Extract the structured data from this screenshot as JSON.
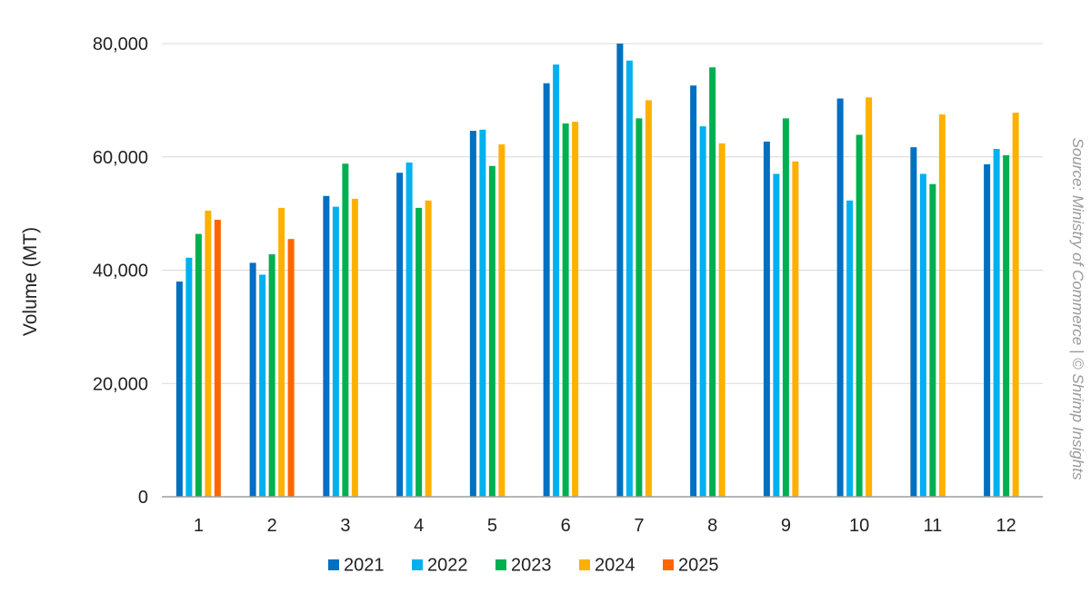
{
  "chart_data": {
    "type": "bar",
    "ylabel": "Volume (MT)",
    "xlabel": "",
    "source": "Source: Ministry of Commerce | © Shrimp Insights",
    "categories": [
      "1",
      "2",
      "3",
      "4",
      "5",
      "6",
      "7",
      "8",
      "9",
      "10",
      "11",
      "12"
    ],
    "ylim": [
      0,
      80000
    ],
    "yticks": [
      0,
      20000,
      40000,
      60000,
      80000
    ],
    "ytick_labels": [
      "0",
      "20,000",
      "40,000",
      "60,000",
      "80,000"
    ],
    "grid": true,
    "legend_position": "bottom",
    "series": [
      {
        "name": "2021",
        "color": "#0070C0",
        "values": [
          38000,
          41300,
          53100,
          57200,
          64600,
          73000,
          80000,
          72600,
          62700,
          70300,
          61700,
          58700
        ]
      },
      {
        "name": "2022",
        "color": "#00B0F0",
        "values": [
          42200,
          39200,
          51200,
          59000,
          64800,
          76300,
          77000,
          65400,
          57000,
          52300,
          57000,
          61400
        ]
      },
      {
        "name": "2023",
        "color": "#00B050",
        "values": [
          46400,
          42800,
          58800,
          51000,
          58400,
          65900,
          66800,
          75800,
          66800,
          63900,
          55200,
          60300
        ]
      },
      {
        "name": "2024",
        "color": "#FFB000",
        "values": [
          50500,
          51000,
          52600,
          52300,
          62200,
          66200,
          70000,
          62400,
          59200,
          70500,
          67500,
          67800
        ]
      },
      {
        "name": "2025",
        "color": "#FF6600",
        "values": [
          48900,
          45500,
          null,
          null,
          null,
          null,
          null,
          null,
          null,
          null,
          null,
          null
        ]
      }
    ]
  }
}
